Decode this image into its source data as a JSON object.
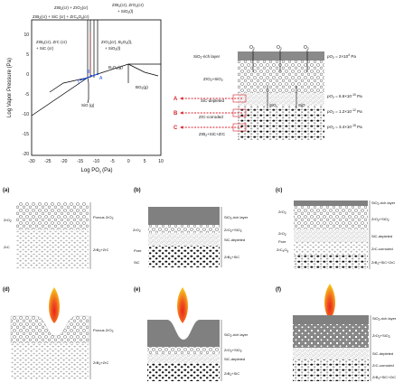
{
  "phase_diagram": {
    "ylabel": "Log Vapor Pressure (Pa)",
    "xlabel": "Log PO",
    "xlabel_sub": "2",
    "xlabel_unit": "(Pa)",
    "xticks": [
      "-30",
      "-25",
      "-20",
      "-15",
      "-10",
      "-5",
      "0",
      "5",
      "10"
    ],
    "yticks": [
      "10",
      "5",
      "0",
      "-5",
      "-10",
      "-15",
      "-20"
    ],
    "top_label_1": "ZrB",
    "top_label_1_rest": "(cr) + ZrO",
    "top_label_1_end": "(cr)",
    "top_label_2": "ZrB",
    "top_label_2_rest": "(cr) + SiC (cr) + ZrC",
    "top_label_2_end": "O",
    "top_label_2_tail": "(cr)",
    "right_label_1": "ZrB",
    "right_label_1_b": "(cr), ZrO",
    "right_label_1_c": "(cr)",
    "right_label_1_d": "+ SiO",
    "right_label_1_e": "(l)",
    "region_left": "ZrB",
    "region_left_b": "(cr), ZrC (cr)",
    "region_left_c": "+ SiC (cr)",
    "region_mid": "ZrO",
    "region_mid_b": "(cr), B",
    "region_mid_c": "O",
    "region_mid_d": "(l),",
    "region_mid_e": "+ SiO",
    "region_mid_f": "(l)",
    "b2o3": "B",
    "b2o3_b": "O",
    "b2o3_c": "(g)",
    "bo2": "BO",
    "bo2_b": "(g)",
    "sio": "SiO (g)",
    "point_a": "A",
    "point_b": "B",
    "point_c": "C"
  },
  "cross_section": {
    "silica_layer": "SiO",
    "silica_layer_rest": "-rich layer",
    "zro2_sio2": "ZrO",
    "zro2_sio2_rest": "+SiO",
    "sic_depleted": "SiC-depleted",
    "zrc_corroded": "ZrC-corroded",
    "bulk": "ZrB",
    "bulk_rest": "+SiC+ZrC",
    "o2": "O",
    "sio": "SiO",
    "arrow_a": "A",
    "arrow_b": "B",
    "arrow_c": "C",
    "p1": "pO",
    "p1_val": " = 2×10",
    "p1_exp": "4",
    "p1_unit": " Pa",
    "p2_val": " = 6.6×10",
    "p2_exp": "-10",
    "p3_val": " = 1.2×10",
    "p3_exp": "-12",
    "p4_val": " = 3.4×10",
    "p4_exp": "-15"
  },
  "panels": {
    "a": {
      "tag": "(a)",
      "zro2": "ZrO",
      "zrc": "ZrC",
      "porous": "Porous ZrO",
      "bulk": "ZrB",
      "bulk_rest": "+ZrC"
    },
    "b": {
      "tag": "(b)",
      "zro2": "ZrO",
      "pore": "Pore",
      "sic": "SiC",
      "silica": "SiO",
      "silica_rest": "-rich layer",
      "mix": "ZrO",
      "mix_rest": "+SiO",
      "dep": "SiC-depleted",
      "bulk": "ZrB",
      "bulk_rest": "+SiC"
    },
    "c": {
      "tag": "(c)",
      "zro2a": "ZrO",
      "zro2b": "ZrO",
      "pore": "Pore",
      "zrcxoy": "ZrC",
      "zrcxoy_b": "O",
      "silica": "SiO",
      "silica_rest": "-rich layer",
      "mix": "ZrO",
      "mix_rest": "+SiO",
      "dep": "SiC-depleted",
      "corr": "ZrC-corroded",
      "bulk": "ZrB",
      "bulk_rest": "+SiC+ZrC"
    },
    "d": {
      "tag": "(d)",
      "porous": "Porous ZrO",
      "bulk": "ZrB",
      "bulk_rest": "+ZrC"
    },
    "e": {
      "tag": "(e)",
      "silica": "SiO",
      "silica_rest": "-rich layer",
      "mix": "ZrO",
      "mix_rest": "+SiO",
      "dep": "SiC-depleted",
      "bulk": "ZrB",
      "bulk_rest": "+SiC"
    },
    "f": {
      "tag": "(f)",
      "silica": "SiO",
      "silica_rest": "-rich layer",
      "mix": "ZrO",
      "mix_rest": "+SiO",
      "dep": "SiC-depleted",
      "corr": "ZrC-corroded",
      "bulk": "ZrB",
      "bulk_rest": "+SiC+ZrC"
    }
  },
  "subscripts": {
    "two": "2",
    "x": "x",
    "y": "y",
    "three": "3"
  },
  "colors": {
    "red": "#d8212b",
    "blue": "#1f4fd8",
    "grey_layer": "#808080",
    "flame_outer": "#f6c21c",
    "flame_inner": "#e8261c"
  }
}
